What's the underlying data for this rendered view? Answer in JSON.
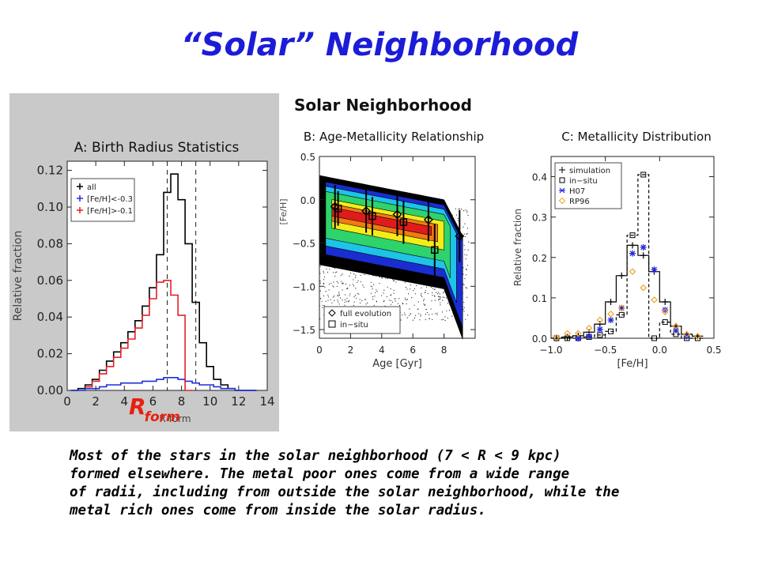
{
  "slide": {
    "title": "“Solar” Neighborhood",
    "caption_lines": [
      "Most of the stars in the solar neighborhood (7 < R < 9 kpc)",
      "formed elsewhere.  The metal poor ones come from a wide range",
      "of radii, including from outside the solar neighborhood, while the",
      "metal rich ones come from inside the solar radius."
    ],
    "annotation": {
      "main": "R",
      "sub": "form",
      "color": "#e8200f"
    },
    "title_color": "#1c1cd8"
  },
  "figure_title": "Solar Neighborhood",
  "chart_data": [
    {
      "panel": "A",
      "type": "line",
      "title": "A: Birth Radius Statistics",
      "xlabel": "R_form",
      "ylabel": "Relative fraction",
      "xlim": [
        0,
        14
      ],
      "ylim": [
        0,
        0.125
      ],
      "xticks": [
        "0",
        "2",
        "4",
        "6",
        "8",
        "10",
        "12",
        "14"
      ],
      "yticks": [
        "0.00",
        "0.02",
        "0.04",
        "0.06",
        "0.08",
        "0.10",
        "0.12"
      ],
      "vlines": [
        7,
        9
      ],
      "legend": {
        "position": "top-left"
      },
      "series": [
        {
          "name": "all",
          "color": "#000000",
          "x": [
            0.5,
            1,
            1.5,
            2,
            2.5,
            3,
            3.5,
            4,
            4.5,
            5,
            5.5,
            6,
            6.5,
            7,
            7.5,
            8,
            8.5,
            9,
            9.5,
            10,
            10.5,
            11,
            11.5,
            12,
            12.5,
            13
          ],
          "y": [
            0.0,
            0.001,
            0.003,
            0.006,
            0.011,
            0.016,
            0.021,
            0.026,
            0.032,
            0.038,
            0.046,
            0.056,
            0.074,
            0.108,
            0.118,
            0.104,
            0.08,
            0.048,
            0.026,
            0.013,
            0.006,
            0.003,
            0.001,
            0.0,
            0.0,
            0.0
          ]
        },
        {
          "name": "[Fe/H]<-0.3",
          "color": "#1f2fd6",
          "x": [
            0.5,
            1,
            1.5,
            2,
            2.5,
            3,
            3.5,
            4,
            4.5,
            5,
            5.5,
            6,
            6.5,
            7,
            7.5,
            8,
            8.5,
            9,
            9.5,
            10,
            10.5,
            11,
            11.5,
            12,
            12.5,
            13
          ],
          "y": [
            0.0,
            0.0,
            0.001,
            0.001,
            0.002,
            0.003,
            0.003,
            0.004,
            0.004,
            0.004,
            0.005,
            0.005,
            0.006,
            0.007,
            0.007,
            0.006,
            0.005,
            0.004,
            0.003,
            0.003,
            0.002,
            0.001,
            0.001,
            0.0,
            0.0,
            0.0
          ]
        },
        {
          "name": "[Fe/H]>-0.1",
          "color": "#e0222a",
          "x": [
            1.5,
            2,
            2.5,
            3,
            3.5,
            4,
            4.5,
            5,
            5.5,
            6,
            6.5,
            7,
            7.5,
            8,
            8.5
          ],
          "y": [
            0.002,
            0.005,
            0.009,
            0.013,
            0.018,
            0.023,
            0.028,
            0.034,
            0.041,
            0.05,
            0.059,
            0.06,
            0.052,
            0.041,
            0.0
          ]
        }
      ]
    },
    {
      "panel": "B",
      "type": "scatter",
      "title": "B: Age-Metallicity Relationship",
      "xlabel": "Age [Gyr]",
      "ylabel": "[Fe/H]",
      "xlim": [
        0,
        10
      ],
      "ylim": [
        -1.6,
        0.5
      ],
      "xticks": [
        "0",
        "2",
        "4",
        "6",
        "8"
      ],
      "yticks": [
        "0.5",
        "0.0",
        "−0.5",
        "−1.0",
        "−1.5"
      ],
      "legend": {
        "position": "bottom-left"
      },
      "density_contours": true,
      "series": [
        {
          "name": "full evolution",
          "marker": "diamond",
          "x": [
            1.0,
            3.0,
            5.0,
            7.0,
            9.0
          ],
          "y": [
            -0.08,
            -0.13,
            -0.17,
            -0.23,
            -0.42
          ],
          "err": [
            0.25,
            0.25,
            0.25,
            0.25,
            0.3
          ]
        },
        {
          "name": "in−situ",
          "marker": "square",
          "x": [
            1.2,
            3.4,
            5.4,
            7.4
          ],
          "y": [
            -0.1,
            -0.19,
            -0.26,
            -0.58
          ],
          "err": [
            0.2,
            0.22,
            0.25,
            0.3
          ]
        }
      ]
    },
    {
      "panel": "C",
      "type": "line",
      "title": "C: Metallicity Distribution",
      "xlabel": "[Fe/H]",
      "ylabel": "Relative fraction",
      "xlim": [
        -1.0,
        0.5
      ],
      "ylim": [
        0,
        0.45
      ],
      "xticks": [
        "−1.0",
        "−0.5",
        "0.0",
        "0.5"
      ],
      "yticks": [
        "0.0",
        "0.1",
        "0.2",
        "0.3",
        "0.4"
      ],
      "legend": {
        "position": "top-left"
      },
      "series": [
        {
          "name": "simulation",
          "marker": "plus",
          "step": true,
          "color": "#000000",
          "x": [
            -0.95,
            -0.85,
            -0.75,
            -0.65,
            -0.55,
            -0.45,
            -0.35,
            -0.25,
            -0.15,
            -0.05,
            0.05,
            0.15,
            0.25,
            0.35
          ],
          "y": [
            0.0,
            0.003,
            0.006,
            0.015,
            0.035,
            0.09,
            0.155,
            0.23,
            0.205,
            0.165,
            0.09,
            0.03,
            0.01,
            0.005
          ]
        },
        {
          "name": "in−situ",
          "marker": "square",
          "step": true,
          "dashed": true,
          "color": "#000000",
          "x": [
            -0.95,
            -0.85,
            -0.75,
            -0.65,
            -0.55,
            -0.45,
            -0.35,
            -0.25,
            -0.15,
            -0.05,
            0.05,
            0.15,
            0.25,
            0.35
          ],
          "y": [
            0.0,
            0.0,
            0.0,
            0.003,
            0.008,
            0.017,
            0.058,
            0.255,
            0.405,
            0.0,
            0.04,
            0.01,
            0.0,
            0.0
          ]
        },
        {
          "name": "H07",
          "marker": "asterisk",
          "color": "#2a2ad8",
          "x": [
            -0.75,
            -0.65,
            -0.55,
            -0.45,
            -0.35,
            -0.25,
            -0.15,
            -0.05,
            0.05,
            0.15,
            0.25
          ],
          "y": [
            0.0,
            0.005,
            0.022,
            0.045,
            0.075,
            0.21,
            0.225,
            0.17,
            0.07,
            0.02,
            0.005
          ]
        },
        {
          "name": "RP96",
          "marker": "diamond",
          "color": "#f0a428",
          "x": [
            -0.95,
            -0.85,
            -0.75,
            -0.65,
            -0.55,
            -0.45,
            -0.35,
            -0.25,
            -0.15,
            -0.05,
            0.05,
            0.15,
            0.25,
            0.35
          ],
          "y": [
            0.002,
            0.012,
            0.012,
            0.025,
            0.045,
            0.06,
            0.075,
            0.165,
            0.125,
            0.095,
            0.065,
            0.03,
            0.01,
            0.005
          ]
        }
      ]
    }
  ]
}
